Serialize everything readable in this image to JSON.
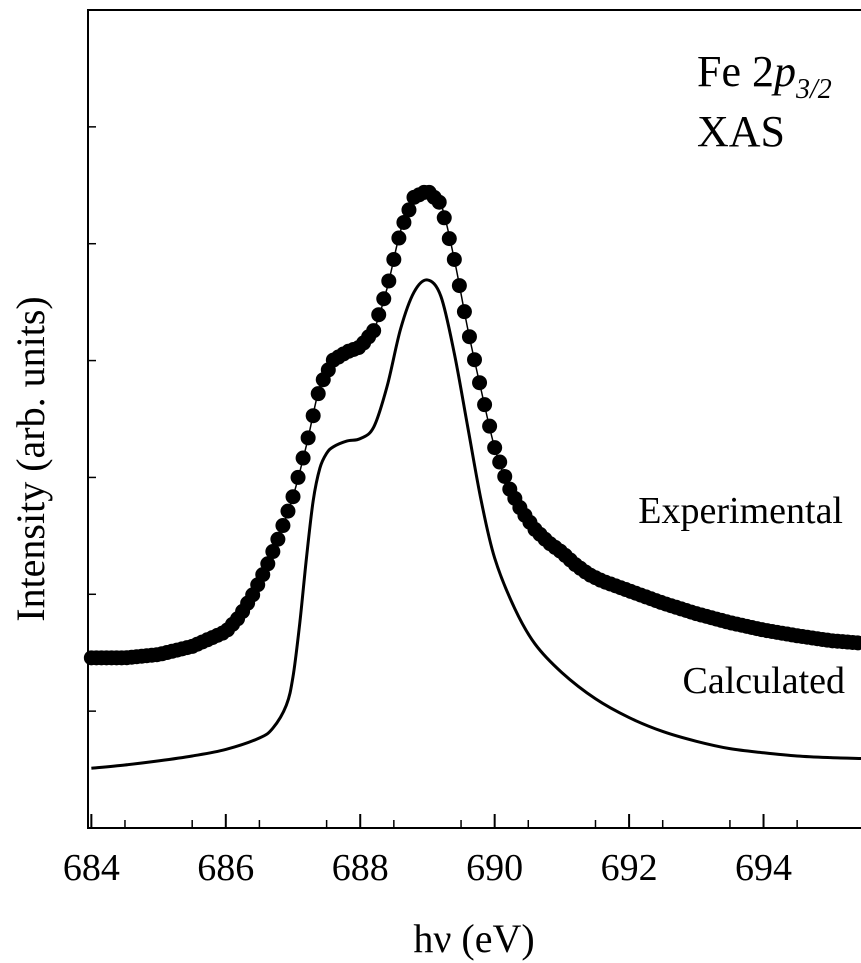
{
  "chart_data": {
    "type": "line",
    "title": "",
    "xlabel": "hν (eV)",
    "ylabel": "Intensity (arb. units)",
    "xlim": [
      683.95,
      695.45
    ],
    "ylim": [
      0,
      1
    ],
    "xticks": [
      684,
      686,
      688,
      690,
      692,
      694
    ],
    "xtick_labels": [
      "684",
      "686",
      "688",
      "690",
      "692",
      "694"
    ],
    "y_tick_labels_shown": false,
    "grid": false,
    "legend": "none",
    "annotation": {
      "line1_prefix": "Fe 2",
      "line1_italic": "p",
      "line1_sub": "3/2",
      "line2": "XAS"
    },
    "series": [
      {
        "name": "Experimental",
        "style": "dots-with-line",
        "color": "#000000",
        "x": [
          684.0,
          684.5,
          685.0,
          685.5,
          686.0,
          686.2,
          686.4,
          686.6,
          686.8,
          687.0,
          687.2,
          687.4,
          687.6,
          687.8,
          688.0,
          688.2,
          688.4,
          688.6,
          688.8,
          689.0,
          689.2,
          689.4,
          689.6,
          689.8,
          690.0,
          690.2,
          690.4,
          690.6,
          690.8,
          691.0,
          691.2,
          691.4,
          691.6,
          692.0,
          692.5,
          693.0,
          693.5,
          694.0,
          694.5,
          695.0,
          695.45
        ],
        "y": [
          0.208,
          0.208,
          0.212,
          0.222,
          0.24,
          0.258,
          0.285,
          0.318,
          0.358,
          0.405,
          0.468,
          0.54,
          0.572,
          0.582,
          0.588,
          0.608,
          0.66,
          0.73,
          0.771,
          0.779,
          0.763,
          0.695,
          0.61,
          0.535,
          0.465,
          0.418,
          0.388,
          0.365,
          0.349,
          0.337,
          0.322,
          0.31,
          0.302,
          0.29,
          0.275,
          0.262,
          0.251,
          0.242,
          0.235,
          0.229,
          0.226
        ],
        "label_text": "Experimental"
      },
      {
        "name": "Calculated",
        "style": "line",
        "color": "#000000",
        "x": [
          684.0,
          684.5,
          685.0,
          685.5,
          686.0,
          686.5,
          686.7,
          686.9,
          687.0,
          687.1,
          687.2,
          687.3,
          687.4,
          687.5,
          687.6,
          687.8,
          688.0,
          688.2,
          688.4,
          688.6,
          688.8,
          689.0,
          689.2,
          689.4,
          689.6,
          689.8,
          690.0,
          690.3,
          690.6,
          691.0,
          691.5,
          692.0,
          692.5,
          693.0,
          693.5,
          694.0,
          694.5,
          695.0,
          695.45
        ],
        "y": [
          0.073,
          0.077,
          0.082,
          0.088,
          0.096,
          0.11,
          0.122,
          0.15,
          0.185,
          0.25,
          0.33,
          0.4,
          0.44,
          0.458,
          0.466,
          0.473,
          0.476,
          0.49,
          0.54,
          0.61,
          0.655,
          0.67,
          0.65,
          0.58,
          0.49,
          0.4,
          0.33,
          0.268,
          0.225,
          0.19,
          0.158,
          0.135,
          0.118,
          0.106,
          0.097,
          0.092,
          0.088,
          0.086,
          0.085
        ],
        "label_text": "Calculated"
      }
    ]
  }
}
